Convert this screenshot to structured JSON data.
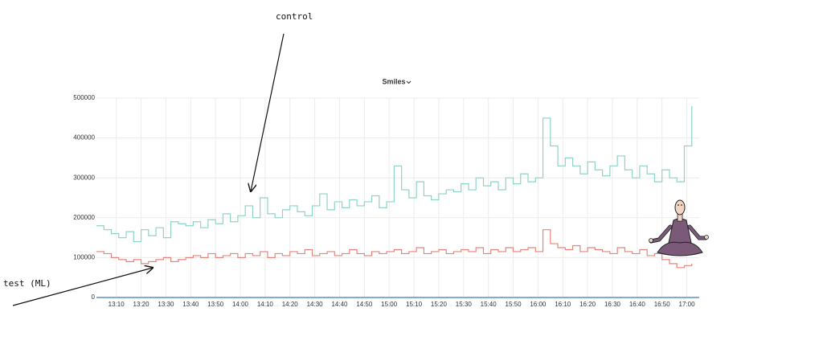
{
  "chart_data": {
    "type": "step-line",
    "title": "Smiles",
    "x": [
      782,
      785,
      788,
      791,
      794,
      797,
      800,
      803,
      806,
      809,
      812,
      815,
      818,
      821,
      824,
      827,
      830,
      833,
      836,
      839,
      842,
      845,
      848,
      851,
      854,
      857,
      860,
      863,
      866,
      869,
      872,
      875,
      878,
      881,
      884,
      887,
      890,
      893,
      896,
      899,
      902,
      905,
      908,
      911,
      914,
      917,
      920,
      923,
      926,
      929,
      932,
      935,
      938,
      941,
      944,
      947,
      950,
      953,
      956,
      959,
      962,
      965,
      968,
      971,
      974,
      977,
      980,
      983,
      986,
      989,
      992,
      995,
      998,
      1001,
      1004,
      1007,
      1010,
      1013,
      1016,
      1019,
      1022
    ],
    "series": [
      {
        "name": "control",
        "color": "#8fd3c8",
        "values": [
          180000,
          170000,
          160000,
          150000,
          165000,
          140000,
          170000,
          155000,
          175000,
          150000,
          190000,
          185000,
          180000,
          190000,
          175000,
          195000,
          185000,
          210000,
          190000,
          205000,
          230000,
          200000,
          250000,
          210000,
          200000,
          220000,
          230000,
          215000,
          205000,
          230000,
          260000,
          220000,
          240000,
          225000,
          245000,
          230000,
          240000,
          255000,
          225000,
          240000,
          330000,
          270000,
          250000,
          290000,
          255000,
          245000,
          260000,
          270000,
          265000,
          285000,
          270000,
          300000,
          280000,
          290000,
          270000,
          300000,
          285000,
          310000,
          290000,
          300000,
          450000,
          380000,
          330000,
          350000,
          330000,
          310000,
          340000,
          320000,
          305000,
          330000,
          355000,
          320000,
          300000,
          330000,
          310000,
          290000,
          320000,
          300000,
          290000,
          380000,
          480000
        ]
      },
      {
        "name": "test (ML)",
        "color": "#e8857b",
        "values": [
          115000,
          110000,
          100000,
          95000,
          90000,
          95000,
          85000,
          90000,
          95000,
          100000,
          90000,
          95000,
          100000,
          105000,
          100000,
          110000,
          100000,
          105000,
          110000,
          100000,
          110000,
          105000,
          115000,
          100000,
          110000,
          105000,
          115000,
          110000,
          120000,
          105000,
          110000,
          115000,
          105000,
          110000,
          120000,
          110000,
          105000,
          115000,
          110000,
          115000,
          120000,
          110000,
          115000,
          125000,
          110000,
          115000,
          120000,
          110000,
          115000,
          120000,
          115000,
          125000,
          110000,
          120000,
          115000,
          125000,
          115000,
          120000,
          125000,
          115000,
          170000,
          135000,
          125000,
          120000,
          130000,
          115000,
          125000,
          120000,
          115000,
          110000,
          125000,
          115000,
          110000,
          120000,
          105000,
          110000,
          95000,
          85000,
          75000,
          80000,
          85000
        ]
      }
    ],
    "xlim": [
      782,
      1025
    ],
    "xticks": [
      {
        "value": 790,
        "label": "13:10"
      },
      {
        "value": 800,
        "label": "13:20"
      },
      {
        "value": 810,
        "label": "13:30"
      },
      {
        "value": 820,
        "label": "13:40"
      },
      {
        "value": 830,
        "label": "13:50"
      },
      {
        "value": 840,
        "label": "14:00"
      },
      {
        "value": 850,
        "label": "14:10"
      },
      {
        "value": 860,
        "label": "14:20"
      },
      {
        "value": 870,
        "label": "14:30"
      },
      {
        "value": 880,
        "label": "14:40"
      },
      {
        "value": 890,
        "label": "14:50"
      },
      {
        "value": 900,
        "label": "15:00"
      },
      {
        "value": 910,
        "label": "15:10"
      },
      {
        "value": 920,
        "label": "15:20"
      },
      {
        "value": 930,
        "label": "15:30"
      },
      {
        "value": 940,
        "label": "15:40"
      },
      {
        "value": 950,
        "label": "15:50"
      },
      {
        "value": 960,
        "label": "16:00"
      },
      {
        "value": 970,
        "label": "16:10"
      },
      {
        "value": 980,
        "label": "16:20"
      },
      {
        "value": 990,
        "label": "16:30"
      },
      {
        "value": 1000,
        "label": "16:40"
      },
      {
        "value": 1010,
        "label": "16:50"
      },
      {
        "value": 1020,
        "label": "17:00"
      }
    ],
    "ylim": [
      0,
      500000
    ],
    "yticks": [
      0,
      100000,
      200000,
      300000,
      400000,
      500000
    ],
    "grid": true
  }
}
